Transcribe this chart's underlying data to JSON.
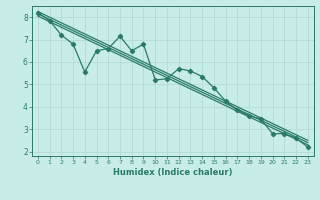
{
  "xlabel": "Humidex (Indice chaleur)",
  "ylabel": "",
  "bg_color": "#c8ece8",
  "line_color": "#2a7a6a",
  "grid_color": "#afd8d0",
  "x_data": [
    0,
    1,
    2,
    3,
    4,
    5,
    6,
    7,
    8,
    9,
    10,
    11,
    12,
    13,
    14,
    15,
    16,
    17,
    18,
    19,
    20,
    21,
    22,
    23
  ],
  "y_main": [
    8.2,
    7.85,
    7.2,
    6.8,
    5.55,
    6.5,
    6.6,
    7.15,
    6.5,
    6.8,
    5.2,
    5.25,
    5.7,
    5.6,
    5.35,
    4.85,
    4.25,
    3.85,
    3.6,
    3.45,
    2.8,
    2.8,
    2.6,
    2.2
  ],
  "y_reg_upper": [
    8.25,
    8.0,
    7.75,
    7.5,
    7.25,
    7.0,
    6.75,
    6.5,
    6.25,
    6.0,
    5.75,
    5.5,
    5.25,
    5.0,
    4.75,
    4.5,
    4.25,
    4.0,
    3.75,
    3.5,
    3.25,
    3.0,
    2.75,
    2.5
  ],
  "y_reg_mid": [
    8.15,
    7.9,
    7.65,
    7.4,
    7.15,
    6.9,
    6.65,
    6.4,
    6.15,
    5.9,
    5.65,
    5.4,
    5.15,
    4.9,
    4.65,
    4.4,
    4.15,
    3.9,
    3.65,
    3.4,
    3.15,
    2.9,
    2.65,
    2.4
  ],
  "y_reg_lower": [
    8.05,
    7.8,
    7.55,
    7.3,
    7.05,
    6.8,
    6.55,
    6.3,
    6.05,
    5.8,
    5.55,
    5.3,
    5.05,
    4.8,
    4.55,
    4.3,
    4.05,
    3.8,
    3.55,
    3.3,
    3.05,
    2.8,
    2.55,
    2.3
  ],
  "ylim": [
    1.8,
    8.5
  ],
  "xlim": [
    -0.5,
    23.5
  ],
  "yticks": [
    2,
    3,
    4,
    5,
    6,
    7,
    8
  ],
  "xticks": [
    0,
    1,
    2,
    3,
    4,
    5,
    6,
    7,
    8,
    9,
    10,
    11,
    12,
    13,
    14,
    15,
    16,
    17,
    18,
    19,
    20,
    21,
    22,
    23
  ],
  "figsize": [
    3.2,
    2.0
  ],
  "dpi": 100
}
